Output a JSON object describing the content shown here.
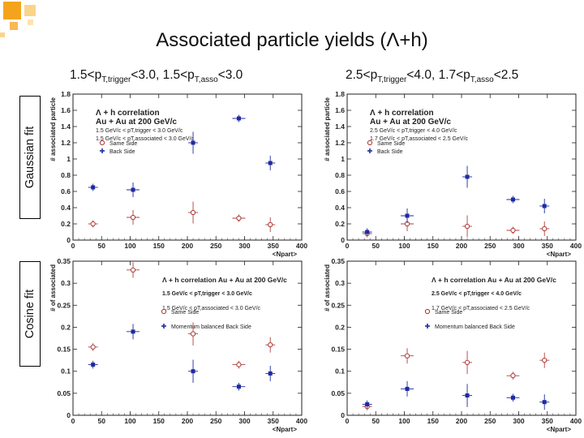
{
  "title": "Associated particle yields (Λ+h)",
  "columns": [
    {
      "parts": [
        "1.5<p",
        "T,trigger",
        "<3.0, 1.5<p",
        "T,asso",
        "<3.0"
      ]
    },
    {
      "parts": [
        "2.5<p",
        "T,trigger",
        "<4.0, 1.7<p",
        "T,asso",
        "<2.5"
      ]
    }
  ],
  "rows": [
    "Gaussian fit",
    "Cosine fit"
  ],
  "colors": {
    "same": "#b0413e",
    "away": "#1f2aa0",
    "deco": "#f4a41c"
  },
  "chart_data": [
    {
      "type": "scatter",
      "xlabel": "<Npart>",
      "ylabel": "# associated particle",
      "xlim": [
        0,
        400
      ],
      "ylim": [
        0,
        1.8
      ],
      "xticks": [
        0,
        50,
        100,
        150,
        200,
        250,
        300,
        350,
        400
      ],
      "yticks": [
        0,
        0.2,
        0.4,
        0.6,
        0.8,
        1,
        1.2,
        1.4,
        1.6,
        1.8
      ],
      "legend_lines": [
        "Λ + h correlation",
        "Au + Au at 200 GeV/c",
        "1.5 GeV/c < pT,trigger < 3.0 GeV/c",
        "1.5 GeV/c < pT,associated < 3.0 GeV/c"
      ],
      "series": [
        {
          "name": "Same Side",
          "x": [
            35,
            105,
            210,
            290,
            345
          ],
          "y": [
            0.2,
            0.28,
            0.34,
            0.27,
            0.19
          ]
        },
        {
          "name": "Back Side",
          "x": [
            35,
            105,
            210,
            290,
            345
          ],
          "y": [
            0.65,
            0.62,
            1.2,
            1.5,
            0.95
          ]
        }
      ]
    },
    {
      "type": "scatter",
      "xlabel": "<Npart>",
      "ylabel": "# associated particle",
      "xlim": [
        0,
        400
      ],
      "ylim": [
        0,
        1.8
      ],
      "xticks": [
        0,
        50,
        100,
        150,
        200,
        250,
        300,
        350,
        400
      ],
      "yticks": [
        0,
        0.2,
        0.4,
        0.6,
        0.8,
        1,
        1.2,
        1.4,
        1.6,
        1.8
      ],
      "legend_lines": [
        "Λ + h correlation",
        "Au + Au at 200 GeV/c",
        "2.5 GeV/c < pT,trigger < 4.0 GeV/c",
        "1.7 GeV/c < pT,associated < 2.5 GeV/c"
      ],
      "series": [
        {
          "name": "Same Side",
          "x": [
            35,
            105,
            210,
            290,
            345
          ],
          "y": [
            0.08,
            0.2,
            0.17,
            0.12,
            0.14
          ]
        },
        {
          "name": "Back Side",
          "x": [
            35,
            105,
            210,
            290,
            345
          ],
          "y": [
            0.1,
            0.3,
            0.78,
            0.5,
            0.42
          ]
        }
      ]
    },
    {
      "type": "scatter",
      "xlabel": "<Npart>",
      "ylabel": "# of associated",
      "xlim": [
        0,
        400
      ],
      "ylim": [
        0,
        0.35
      ],
      "xticks": [
        0,
        50,
        100,
        150,
        200,
        250,
        300,
        350,
        400
      ],
      "yticks": [
        0,
        0.05,
        0.1,
        0.15,
        0.2,
        0.25,
        0.3,
        0.35
      ],
      "legend_lines": [
        "Λ + h correlation Au + Au at 200 GeV/c",
        "1.5 GeV/c < pT,trigger < 3.0 GeV/c",
        "1.5 GeV/c < pT,associated < 3.0 GeV/c"
      ],
      "series": [
        {
          "name": "Same Side",
          "x": [
            35,
            105,
            210,
            290,
            345
          ],
          "y": [
            0.155,
            0.33,
            0.185,
            0.115,
            0.16
          ]
        },
        {
          "name": "Momentum balanced Back Side",
          "x": [
            35,
            105,
            210,
            290,
            345
          ],
          "y": [
            0.115,
            0.19,
            0.1,
            0.065,
            0.095
          ]
        }
      ]
    },
    {
      "type": "scatter",
      "xlabel": "<Npart>",
      "ylabel": "# of associated",
      "xlim": [
        0,
        400
      ],
      "ylim": [
        0,
        0.35
      ],
      "xticks": [
        0,
        50,
        100,
        150,
        200,
        250,
        300,
        350,
        400
      ],
      "yticks": [
        0,
        0.05,
        0.1,
        0.15,
        0.2,
        0.25,
        0.3,
        0.35
      ],
      "legend_lines": [
        "Λ + h correlation Au + Au at 200 GeV/c",
        "2.5 GeV/c < pT,trigger < 4.0 GeV/c",
        "1.7 GeV/c < pT,associated < 2.5 GeV/c"
      ],
      "series": [
        {
          "name": "Same Side",
          "x": [
            35,
            105,
            210,
            290,
            345
          ],
          "y": [
            0.02,
            0.135,
            0.12,
            0.09,
            0.125
          ]
        },
        {
          "name": "Momentum balanced Back Side",
          "x": [
            35,
            105,
            210,
            290,
            345
          ],
          "y": [
            0.025,
            0.06,
            0.045,
            0.04,
            0.03
          ]
        }
      ]
    }
  ]
}
